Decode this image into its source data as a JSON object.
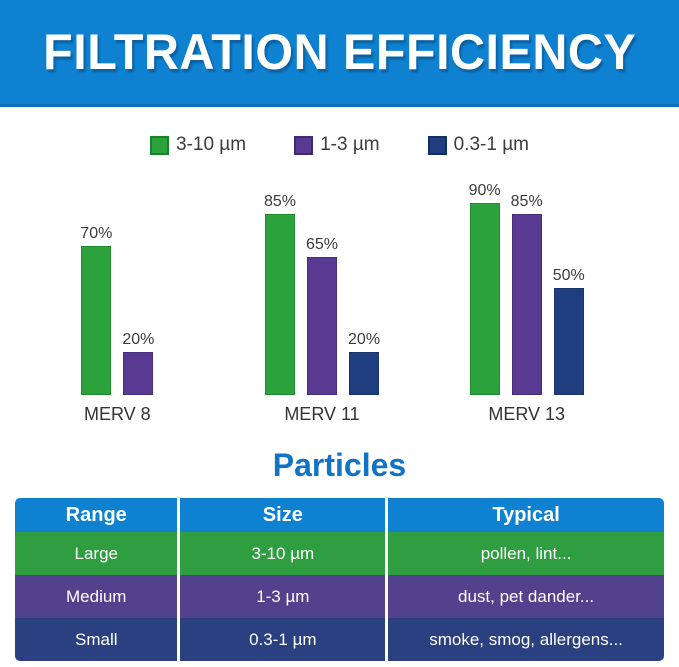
{
  "header": {
    "title": "FILTRATION EFFICIENCY",
    "bg_color": "#0e81d1",
    "text_color": "#ffffff"
  },
  "colors": {
    "green": "#2ba23c",
    "green_border": "#1f8c2f",
    "purple": "#583a92",
    "purple_border": "#44307a",
    "navy": "#254280",
    "navy_border": "#1b3468",
    "header_blue": "#0e81d1",
    "title_blue": "#1173c5",
    "label_gray": "#3b3b3b"
  },
  "chart_data": {
    "type": "bar",
    "title": "FILTRATION EFFICIENCY",
    "categories": [
      "MERV 8",
      "MERV 11",
      "MERV 13"
    ],
    "series": [
      {
        "name": "3-10 µm",
        "color": "#2ba23c",
        "border": "#1f8c2f",
        "values": [
          70,
          85,
          90
        ]
      },
      {
        "name": "1-3 µm",
        "color": "#583a92",
        "border": "#44307a",
        "values": [
          20,
          65,
          85
        ]
      },
      {
        "name": "0.3-1 µm",
        "color": "#1e3e80",
        "border": "#1b3468",
        "values": [
          null,
          20,
          50
        ]
      }
    ],
    "value_suffix": "%",
    "value_labels": [
      [
        "70%",
        "85%",
        "90%"
      ],
      [
        "20%",
        "65%",
        "85%"
      ],
      [
        null,
        "20%",
        "50%"
      ]
    ],
    "ylim": [
      0,
      100
    ],
    "grid": false,
    "axis_lines": false,
    "legend_position": "top"
  },
  "legend": [
    {
      "label": "3-10 µm",
      "color": "#2ba23c",
      "border": "#17812c"
    },
    {
      "label": "1-3 µm",
      "color": "#583a92",
      "border": "#3f2a78"
    },
    {
      "label": "0.3-1 µm",
      "color": "#1e3e80",
      "border": "#142d63"
    }
  ],
  "particles": {
    "title": "Particles",
    "columns": [
      "Range",
      "Size",
      "Typical"
    ],
    "header_color": "#0e81d1",
    "rows": [
      {
        "color": "#2f9e41",
        "cells": [
          "Large",
          "3-10 µm",
          "pollen, lint..."
        ]
      },
      {
        "color": "#52418c",
        "cells": [
          "Medium",
          "1-3 µm",
          "dust, pet dander..."
        ]
      },
      {
        "color": "#2a4080",
        "cells": [
          "Small",
          "0.3-1 µm",
          "smoke, smog, allergens..."
        ]
      }
    ]
  }
}
